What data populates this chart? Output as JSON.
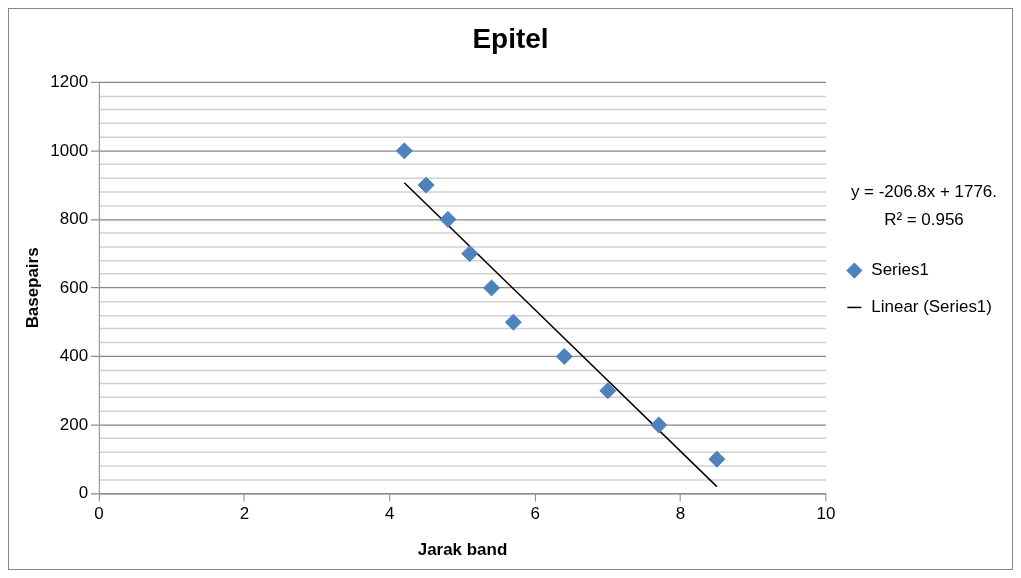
{
  "chart_data": {
    "type": "scatter",
    "title": "Epitel",
    "xlabel": "Jarak band",
    "ylabel": "Basepairs",
    "annotations": [
      "y = -206.8x + 1776.",
      "R² = 0.956"
    ],
    "series": [
      {
        "name": "Series1",
        "color": "#4f81bd",
        "marker": "diamond",
        "x": [
          4.2,
          4.5,
          4.8,
          5.1,
          5.4,
          5.7,
          6.4,
          7.0,
          7.7,
          8.5
        ],
        "values": [
          1000,
          900,
          800,
          700,
          600,
          500,
          400,
          300,
          200,
          100
        ]
      },
      {
        "name": "Linear (Series1)",
        "type": "line",
        "color": "#000000",
        "marker": "none",
        "line_style": "solid",
        "x": [
          4.2,
          8.5
        ],
        "values": [
          907,
          20
        ]
      }
    ],
    "xlim": [
      0,
      10
    ],
    "xticks": [
      0,
      2,
      4,
      6,
      8,
      10
    ],
    "ylim": [
      0,
      1200
    ],
    "yticks": [
      0,
      {
        "value": 40,
        "label": null
      },
      {
        "value": 80,
        "label": null
      },
      {
        "value": 120,
        "label": null
      },
      {
        "value": 160,
        "label": null
      },
      200,
      {
        "value": 240,
        "label": null
      },
      {
        "value": 280,
        "label": null
      },
      {
        "value": 320,
        "label": null
      },
      {
        "value": 360,
        "label": null
      },
      400,
      {
        "value": 440,
        "label": null
      },
      {
        "value": 480,
        "label": null
      },
      {
        "value": 520,
        "label": null
      },
      {
        "value": 560,
        "label": null
      },
      600,
      {
        "value": 640,
        "label": null
      },
      {
        "value": 680,
        "label": null
      },
      {
        "value": 720,
        "label": null
      },
      {
        "value": 760,
        "label": null
      },
      800,
      {
        "value": 840,
        "label": null
      },
      {
        "value": 880,
        "label": null
      },
      {
        "value": 920,
        "label": null
      },
      {
        "value": 960,
        "label": null
      },
      1000,
      {
        "value": 1040,
        "label": null
      },
      {
        "value": 1080,
        "label": null
      },
      {
        "value": 1120,
        "label": null
      },
      {
        "value": 1160,
        "label": null
      },
      1200
    ],
    "grid": "y",
    "legend": "right"
  }
}
